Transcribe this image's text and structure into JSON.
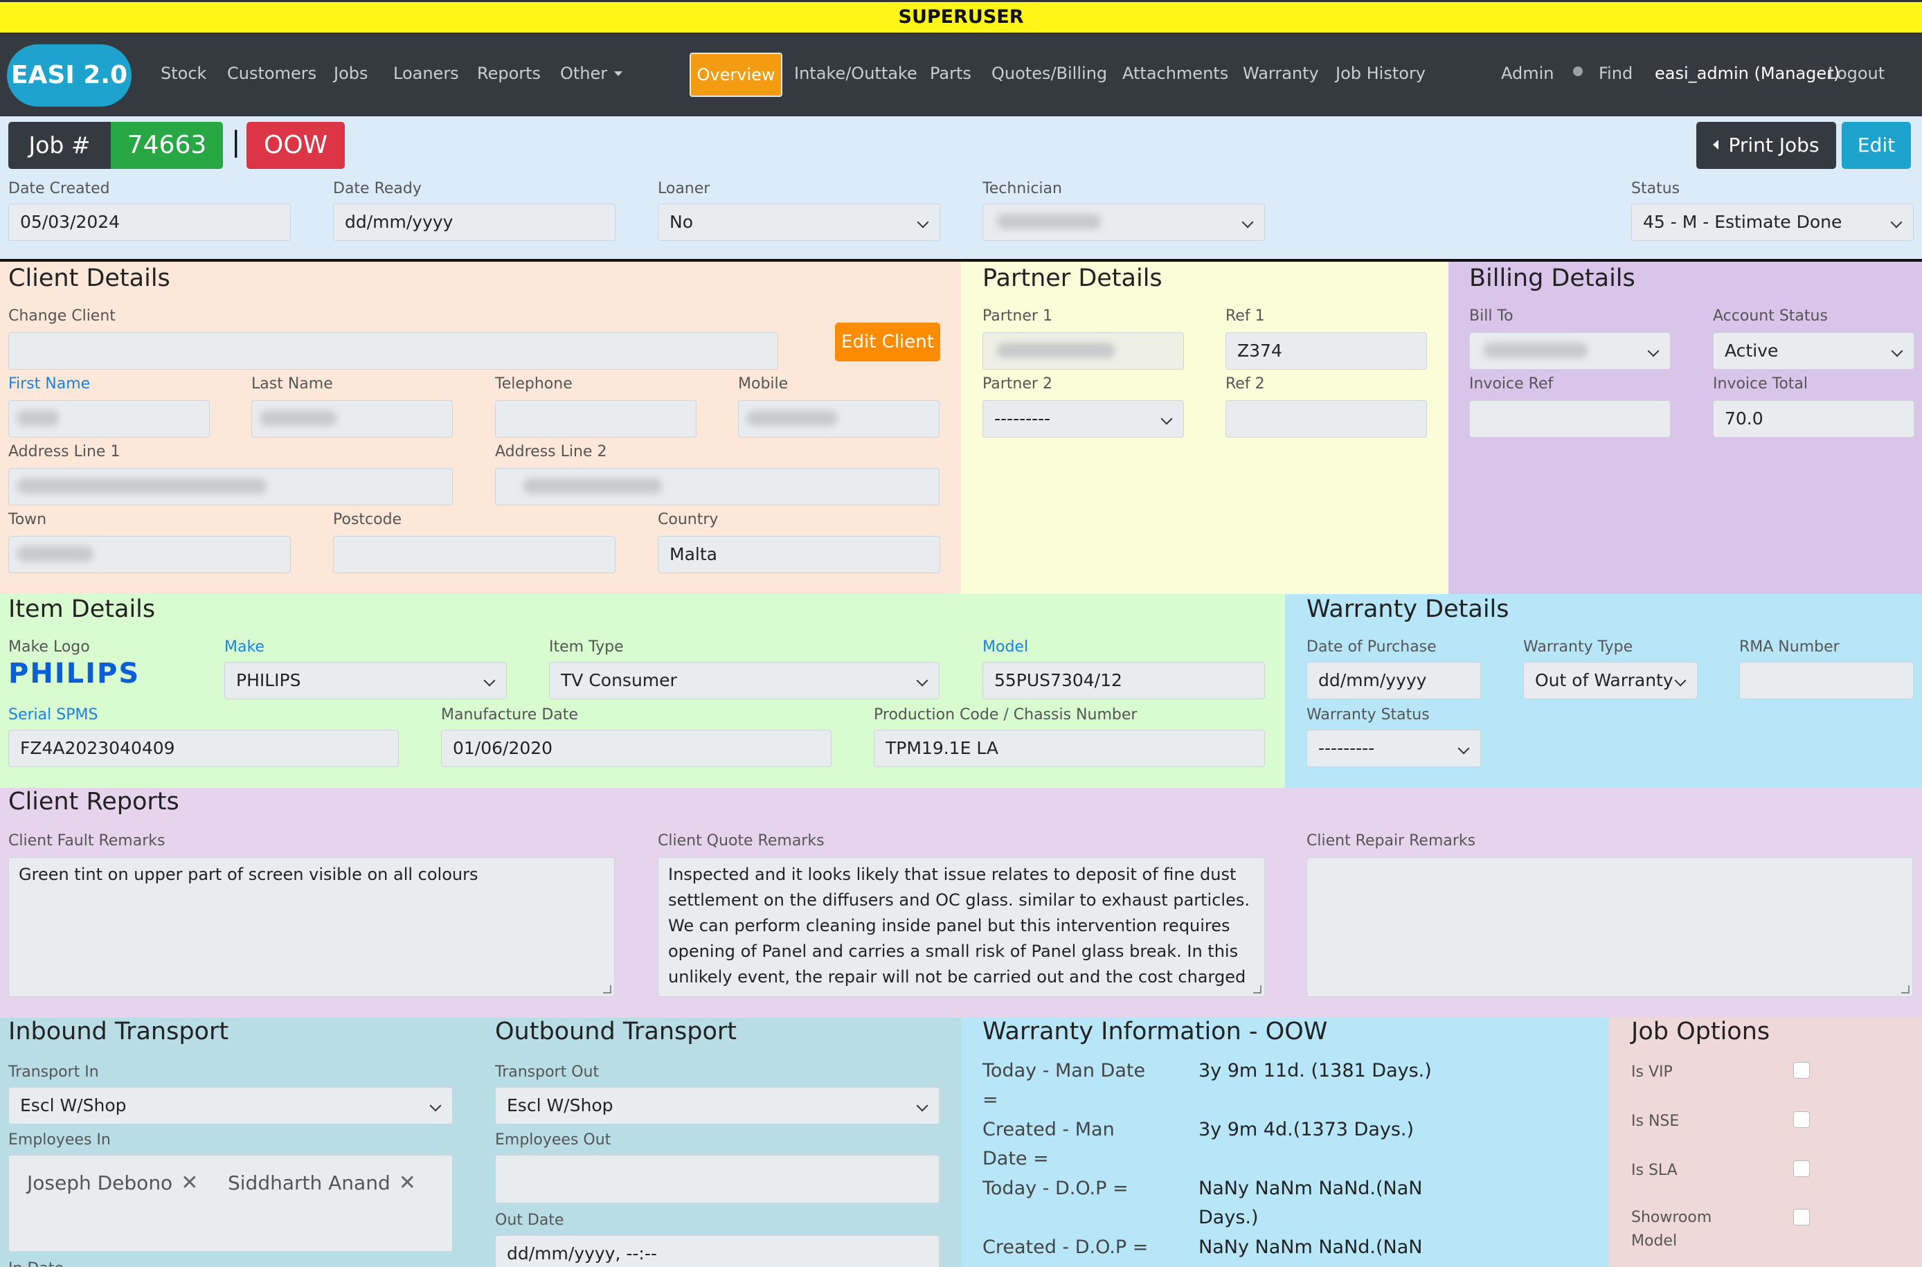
{
  "banner": "SUPERUSER",
  "nav": {
    "brand": "EASI 2.0",
    "left": [
      "Stock",
      "Customers",
      "Jobs",
      "Loaners",
      "Reports"
    ],
    "other": "Other",
    "tabs": [
      "Overview",
      "Intake/Outtake",
      "Parts",
      "Quotes/Billing",
      "Attachments",
      "Warranty",
      "Job History"
    ],
    "admin": "Admin",
    "find": "Find",
    "user": "easi_admin (Manager)",
    "logout": "Logout"
  },
  "job": {
    "label": "Job #",
    "number": "74663",
    "separator": "|",
    "type": "OOW",
    "print_jobs": "Print Jobs",
    "edit": "Edit"
  },
  "header_fields": {
    "date_created_label": "Date Created",
    "date_created": "05/03/2024",
    "date_ready_label": "Date Ready",
    "date_ready": "dd/mm/yyyy",
    "loaner_label": "Loaner",
    "loaner": "No",
    "technician_label": "Technician",
    "status_label": "Status",
    "status": "45 - M - Estimate Done"
  },
  "client": {
    "title": "Client Details",
    "change_client": "Change Client",
    "edit_client": "Edit Client",
    "first_name": "First Name",
    "last_name": "Last Name",
    "telephone": "Telephone",
    "mobile": "Mobile",
    "address1": "Address Line 1",
    "address2": "Address Line 2",
    "town": "Town",
    "postcode": "Postcode",
    "country_label": "Country",
    "country": "Malta"
  },
  "partner": {
    "title": "Partner Details",
    "partner1": "Partner 1",
    "ref1_label": "Ref 1",
    "ref1": "Z374",
    "partner2": "Partner 2",
    "partner2_value": "---------",
    "ref2_label": "Ref 2"
  },
  "billing": {
    "title": "Billing Details",
    "bill_to": "Bill To",
    "account_status_label": "Account Status",
    "account_status": "Active",
    "invoice_ref": "Invoice Ref",
    "invoice_total_label": "Invoice Total",
    "invoice_total": "70.0"
  },
  "item": {
    "title": "Item Details",
    "make_logo": "Make Logo",
    "logo_text": "PHILIPS",
    "make_label": "Make",
    "make": "PHILIPS",
    "item_type_label": "Item Type",
    "item_type": "TV Consumer",
    "model_label": "Model",
    "model": "55PUS7304/12",
    "serial_label": "Serial SPMS",
    "serial": "FZ4A2023040409",
    "manufacture_label": "Manufacture Date",
    "manufacture": "01/06/2020",
    "production_label": "Production Code / Chassis Number",
    "production": "TPM19.1E LA"
  },
  "warranty_details": {
    "title": "Warranty Details",
    "purchase_label": "Date of Purchase",
    "purchase": "dd/mm/yyyy",
    "type_label": "Warranty Type",
    "type": "Out of Warranty",
    "rma_label": "RMA Number",
    "status_label": "Warranty Status",
    "status": "---------"
  },
  "reports": {
    "title": "Client Reports",
    "fault_label": "Client Fault Remarks",
    "fault": "Green tint on upper part of screen visible on all colours",
    "quote_label": "Client Quote Remarks",
    "quote": "Inspected and it looks likely that issue relates to deposit of fine dust settlement on the diffusers and OC glass. similar to exhaust particles. We can perform cleaning inside panel but this intervention requires opening of Panel and carries a small risk of Panel glass break. In this unlikely event, the repair will not be carried out and the cost charged",
    "repair_label": "Client Repair Remarks"
  },
  "inbound": {
    "title": "Inbound Transport",
    "transport_label": "Transport In",
    "transport": "Escl W/Shop",
    "employees_label": "Employees In",
    "employees": [
      "Joseph Debono",
      "Siddharth Anand"
    ],
    "in_date": "In Date"
  },
  "outbound": {
    "title": "Outbound Transport",
    "transport_label": "Transport Out",
    "transport": "Escl W/Shop",
    "employees_label": "Employees Out",
    "out_date_label": "Out Date",
    "out_date": "dd/mm/yyyy, --:--"
  },
  "warranty_info": {
    "title": "Warranty Information - OOW",
    "row1_label": "Today - Man Date =",
    "row1_value": "3y 9m 11d. (1381 Days.)",
    "row2_label": "Created - Man Date =",
    "row2_value": "3y 9m 4d.(1373 Days.)",
    "row3_label": "Today - D.O.P =",
    "row3_value": "NaNy NaNm NaNd.(NaN Days.)",
    "row4_label": "Created - D.O.P =",
    "row4_value": "NaNy NaNm NaNd.(NaN"
  },
  "job_options": {
    "title": "Job Options",
    "items": [
      "Is VIP",
      "Is NSE",
      "Is SLA",
      "Showroom Model"
    ]
  },
  "colors": {
    "banner": "#fff516",
    "navbar": "#343a40",
    "accent_orange": "#f39c12",
    "brand": "#1ea3cf",
    "client_bg": "#fde7d8",
    "partner_bg": "#fbfdd8",
    "billing_bg": "#d9c4ea",
    "item_bg": "#d8fbd0",
    "warranty_bg": "#b8e6f9",
    "reports_bg": "#e6d4ec",
    "transport_bg": "#b8dde4",
    "options_bg": "#eed8d8"
  }
}
